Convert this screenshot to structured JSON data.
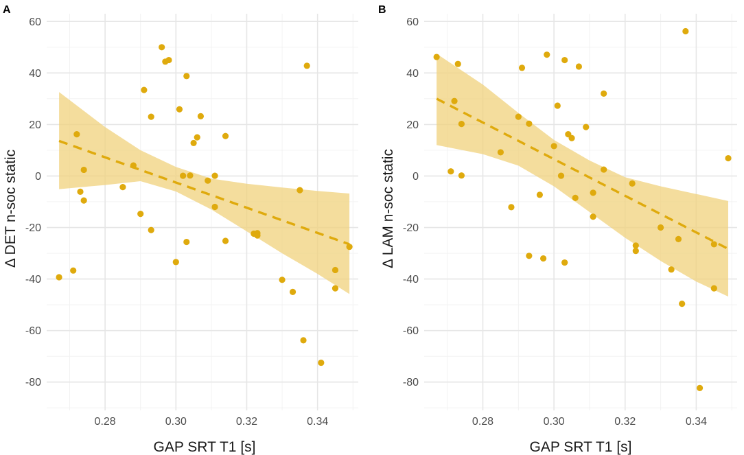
{
  "colors": {
    "point": "#DFAA0D",
    "band": "#F0D27C",
    "line": "#DFAA0D",
    "grid": "#e6e6e6"
  },
  "chart_data": [
    {
      "panel": "A",
      "type": "scatter",
      "xlabel": "GAP SRT T1 [s]",
      "ylabel": "Δ DET n-soc static",
      "xlim": [
        0.2635,
        0.3515
      ],
      "ylim": [
        -91,
        63
      ],
      "xticks": [
        0.28,
        0.3,
        0.32,
        0.34
      ],
      "xtick_labels": [
        "0.28",
        "0.30",
        "0.32",
        "0.34"
      ],
      "yticks": [
        60,
        40,
        20,
        0,
        -20,
        -40,
        -60,
        -80
      ],
      "ytick_labels": [
        "60",
        "40",
        "20",
        "0",
        "-20",
        "-40",
        "-60",
        "-80"
      ],
      "points": [
        [
          0.267,
          -39.3
        ],
        [
          0.271,
          -36.7
        ],
        [
          0.272,
          16.2
        ],
        [
          0.273,
          -6.1
        ],
        [
          0.274,
          2.4
        ],
        [
          0.274,
          -9.5
        ],
        [
          0.285,
          -4.3
        ],
        [
          0.288,
          4.1
        ],
        [
          0.29,
          -14.7
        ],
        [
          0.291,
          33.4
        ],
        [
          0.293,
          23.0
        ],
        [
          0.293,
          -21.0
        ],
        [
          0.296,
          50.0
        ],
        [
          0.297,
          44.4
        ],
        [
          0.298,
          45.0
        ],
        [
          0.3,
          -33.4
        ],
        [
          0.301,
          25.9
        ],
        [
          0.302,
          0.1
        ],
        [
          0.303,
          38.8
        ],
        [
          0.303,
          -25.6
        ],
        [
          0.304,
          0.2
        ],
        [
          0.305,
          12.8
        ],
        [
          0.306,
          15.0
        ],
        [
          0.307,
          23.2
        ],
        [
          0.309,
          -1.8
        ],
        [
          0.311,
          0.1
        ],
        [
          0.311,
          -12.0
        ],
        [
          0.314,
          15.5
        ],
        [
          0.314,
          -25.2
        ],
        [
          0.322,
          -22.4
        ],
        [
          0.323,
          -23.1
        ],
        [
          0.323,
          -22.2
        ],
        [
          0.33,
          -40.3
        ],
        [
          0.333,
          -45.0
        ],
        [
          0.335,
          -5.5
        ],
        [
          0.336,
          -63.8
        ],
        [
          0.337,
          42.8
        ],
        [
          0.341,
          -72.5
        ],
        [
          0.345,
          -36.5
        ],
        [
          0.345,
          -43.6
        ],
        [
          0.349,
          -27.5
        ]
      ],
      "fit": {
        "x": [
          0.267,
          0.349
        ],
        "y": [
          13.6,
          -26.5
        ]
      },
      "ci": {
        "x": [
          0.267,
          0.28,
          0.29,
          0.3,
          0.31,
          0.32,
          0.33,
          0.34,
          0.349
        ],
        "lower": [
          -5.1,
          -3.5,
          -2.0,
          -6.0,
          -13.0,
          -21.5,
          -30.0,
          -38.0,
          -45.8
        ],
        "upper": [
          32.6,
          19.0,
          10.0,
          3.5,
          -1.0,
          -3.0,
          -4.5,
          -5.8,
          -6.8
        ]
      }
    },
    {
      "panel": "B",
      "type": "scatter",
      "xlabel": "GAP SRT T1 [s]",
      "ylabel": "Δ LAM n-soc static",
      "xlim": [
        0.2635,
        0.3515
      ],
      "ylim": [
        -91,
        63
      ],
      "xticks": [
        0.28,
        0.3,
        0.32,
        0.34
      ],
      "xtick_labels": [
        "0.28",
        "0.30",
        "0.32",
        "0.34"
      ],
      "yticks": [
        60,
        40,
        20,
        0,
        -20,
        -40,
        -60,
        -80
      ],
      "ytick_labels": [
        "60",
        "40",
        "20",
        "0",
        "-20",
        "-40",
        "-60",
        "-80"
      ],
      "points": [
        [
          0.267,
          46.2
        ],
        [
          0.271,
          1.8
        ],
        [
          0.272,
          29.1
        ],
        [
          0.273,
          43.5
        ],
        [
          0.274,
          20.2
        ],
        [
          0.274,
          0.2
        ],
        [
          0.285,
          9.2
        ],
        [
          0.288,
          -12.1
        ],
        [
          0.29,
          23.0
        ],
        [
          0.291,
          42.0
        ],
        [
          0.293,
          20.3
        ],
        [
          0.293,
          -31.0
        ],
        [
          0.296,
          -7.3
        ],
        [
          0.297,
          -32.0
        ],
        [
          0.298,
          47.1
        ],
        [
          0.3,
          11.6
        ],
        [
          0.301,
          27.3
        ],
        [
          0.302,
          0.1
        ],
        [
          0.303,
          45.0
        ],
        [
          0.303,
          -33.6
        ],
        [
          0.304,
          16.2
        ],
        [
          0.305,
          14.7
        ],
        [
          0.306,
          -8.5
        ],
        [
          0.307,
          42.5
        ],
        [
          0.309,
          19.0
        ],
        [
          0.311,
          -6.5
        ],
        [
          0.311,
          -15.8
        ],
        [
          0.314,
          32.0
        ],
        [
          0.314,
          2.5
        ],
        [
          0.322,
          -2.9
        ],
        [
          0.323,
          -27.0
        ],
        [
          0.323,
          -29.1
        ],
        [
          0.33,
          -20.0
        ],
        [
          0.333,
          -36.3
        ],
        [
          0.335,
          -24.5
        ],
        [
          0.336,
          -49.6
        ],
        [
          0.337,
          56.2
        ],
        [
          0.341,
          -82.3
        ],
        [
          0.345,
          -26.5
        ],
        [
          0.345,
          -43.6
        ],
        [
          0.349,
          6.9
        ]
      ],
      "fit": {
        "x": [
          0.267,
          0.349
        ],
        "y": [
          30.0,
          -28.3
        ]
      },
      "ci": {
        "x": [
          0.267,
          0.28,
          0.29,
          0.3,
          0.31,
          0.32,
          0.33,
          0.34,
          0.349
        ],
        "lower": [
          12.0,
          8.5,
          4.0,
          -4.0,
          -14.0,
          -24.0,
          -33.0,
          -41.0,
          -46.8
        ],
        "upper": [
          47.5,
          35.5,
          24.5,
          14.0,
          6.0,
          -0.5,
          -4.0,
          -7.0,
          -9.7
        ]
      }
    }
  ]
}
